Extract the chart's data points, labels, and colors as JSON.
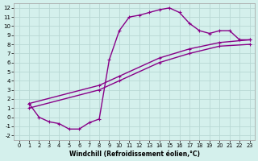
{
  "xlabel": "Windchill (Refroidissement éolien,°C)",
  "ylabel": "",
  "bg_color": "#d4f0ec",
  "grid_color": "#b8d8d4",
  "line_color": "#880088",
  "xlim": [
    -0.5,
    23.5
  ],
  "ylim": [
    -2.5,
    12.5
  ],
  "xticks": [
    0,
    1,
    2,
    3,
    4,
    5,
    6,
    7,
    8,
    9,
    10,
    11,
    12,
    13,
    14,
    15,
    16,
    17,
    18,
    19,
    20,
    21,
    22,
    23
  ],
  "yticks": [
    -2,
    -1,
    0,
    1,
    2,
    3,
    4,
    5,
    6,
    7,
    8,
    9,
    10,
    11,
    12
  ],
  "curve1_x": [
    1,
    2,
    3,
    4,
    5,
    6,
    7,
    8,
    9,
    10,
    11,
    12,
    13,
    14,
    15,
    16,
    17,
    18,
    19,
    20,
    21,
    22,
    23
  ],
  "curve1_y": [
    1.5,
    0.0,
    -0.5,
    -0.7,
    -1.3,
    -1.3,
    -0.6,
    -0.2,
    6.3,
    9.5,
    11.0,
    11.2,
    11.5,
    11.8,
    12.0,
    11.5,
    10.3,
    9.5,
    9.2,
    9.5,
    9.5,
    8.5,
    8.5
  ],
  "line2_x": [
    1,
    8,
    10,
    14,
    17,
    20,
    23
  ],
  "line2_y": [
    1.5,
    3.5,
    4.5,
    6.5,
    7.5,
    8.2,
    8.5
  ],
  "line3_x": [
    1,
    8,
    10,
    14,
    17,
    20,
    23
  ],
  "line3_y": [
    1.0,
    3.0,
    4.0,
    6.0,
    7.0,
    7.8,
    8.0
  ],
  "marker": "+",
  "markersize": 3.5,
  "linewidth": 1.0
}
